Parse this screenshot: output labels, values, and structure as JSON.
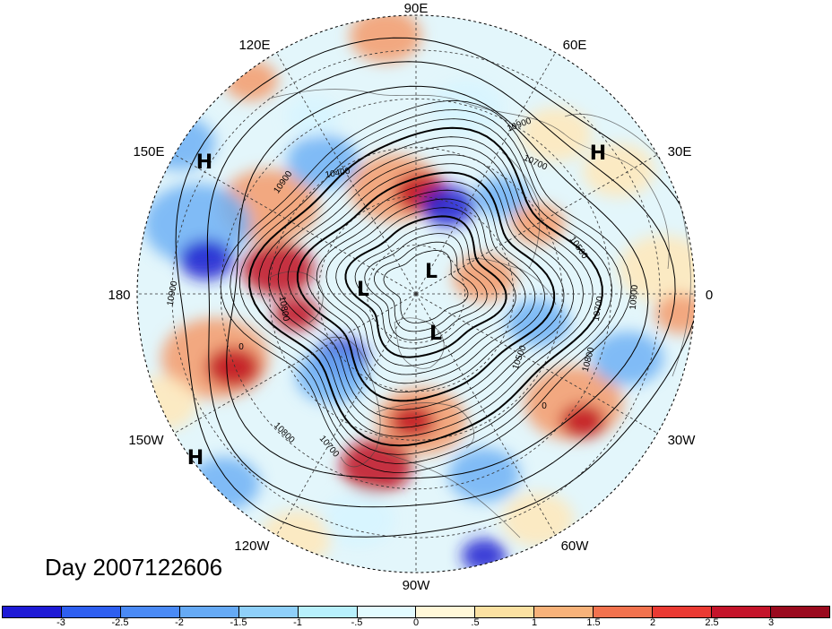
{
  "map": {
    "title": "Day 2007122606",
    "projection": "north-polar-stereographic",
    "longitude_labels": [
      "90E",
      "60E",
      "30E",
      "0",
      "30W",
      "60W",
      "90W",
      "120W",
      "150W",
      "180",
      "150E",
      "120E"
    ],
    "pressure_centers": [
      {
        "type": "H",
        "region": "Sea of Okhotsk"
      },
      {
        "type": "H",
        "region": "Western Europe / Scandinavia"
      },
      {
        "type": "H",
        "region": "North Pacific"
      },
      {
        "type": "L",
        "region": "Siberia"
      },
      {
        "type": "L",
        "region": "Bering Strait"
      },
      {
        "type": "L",
        "region": "Canadian Arctic"
      }
    ],
    "contour_labels": [
      "10900",
      "10400",
      "10700",
      "10500",
      "10900",
      "10700",
      "10800",
      "10900",
      "10800",
      "10700",
      "10800",
      "10500",
      "10900",
      "0",
      "0"
    ],
    "anomaly_colors": {
      "strong_negative": "#1f1fd0",
      "negative": "#6fb0f5",
      "weak_negative": "#d6f5ff",
      "weak_positive": "#ffe8b8",
      "positive": "#f59a6a",
      "strong_positive": "#c01020"
    }
  },
  "colorbar": {
    "ticks": [
      "-3",
      "-2.5",
      "-2",
      "-1.5",
      "-1",
      "-.5",
      "0",
      ".5",
      "1",
      "1.5",
      "2",
      "2.5",
      "3"
    ],
    "colors": [
      "#1e1ad6",
      "#2e5ff0",
      "#4a8af5",
      "#66aaf5",
      "#8fd0fa",
      "#b8f0fc",
      "#e3fbff",
      "#fff7d8",
      "#fbe1a2",
      "#f7b27a",
      "#f2724e",
      "#ea3a33",
      "#c4142a",
      "#9a0a1e"
    ]
  }
}
